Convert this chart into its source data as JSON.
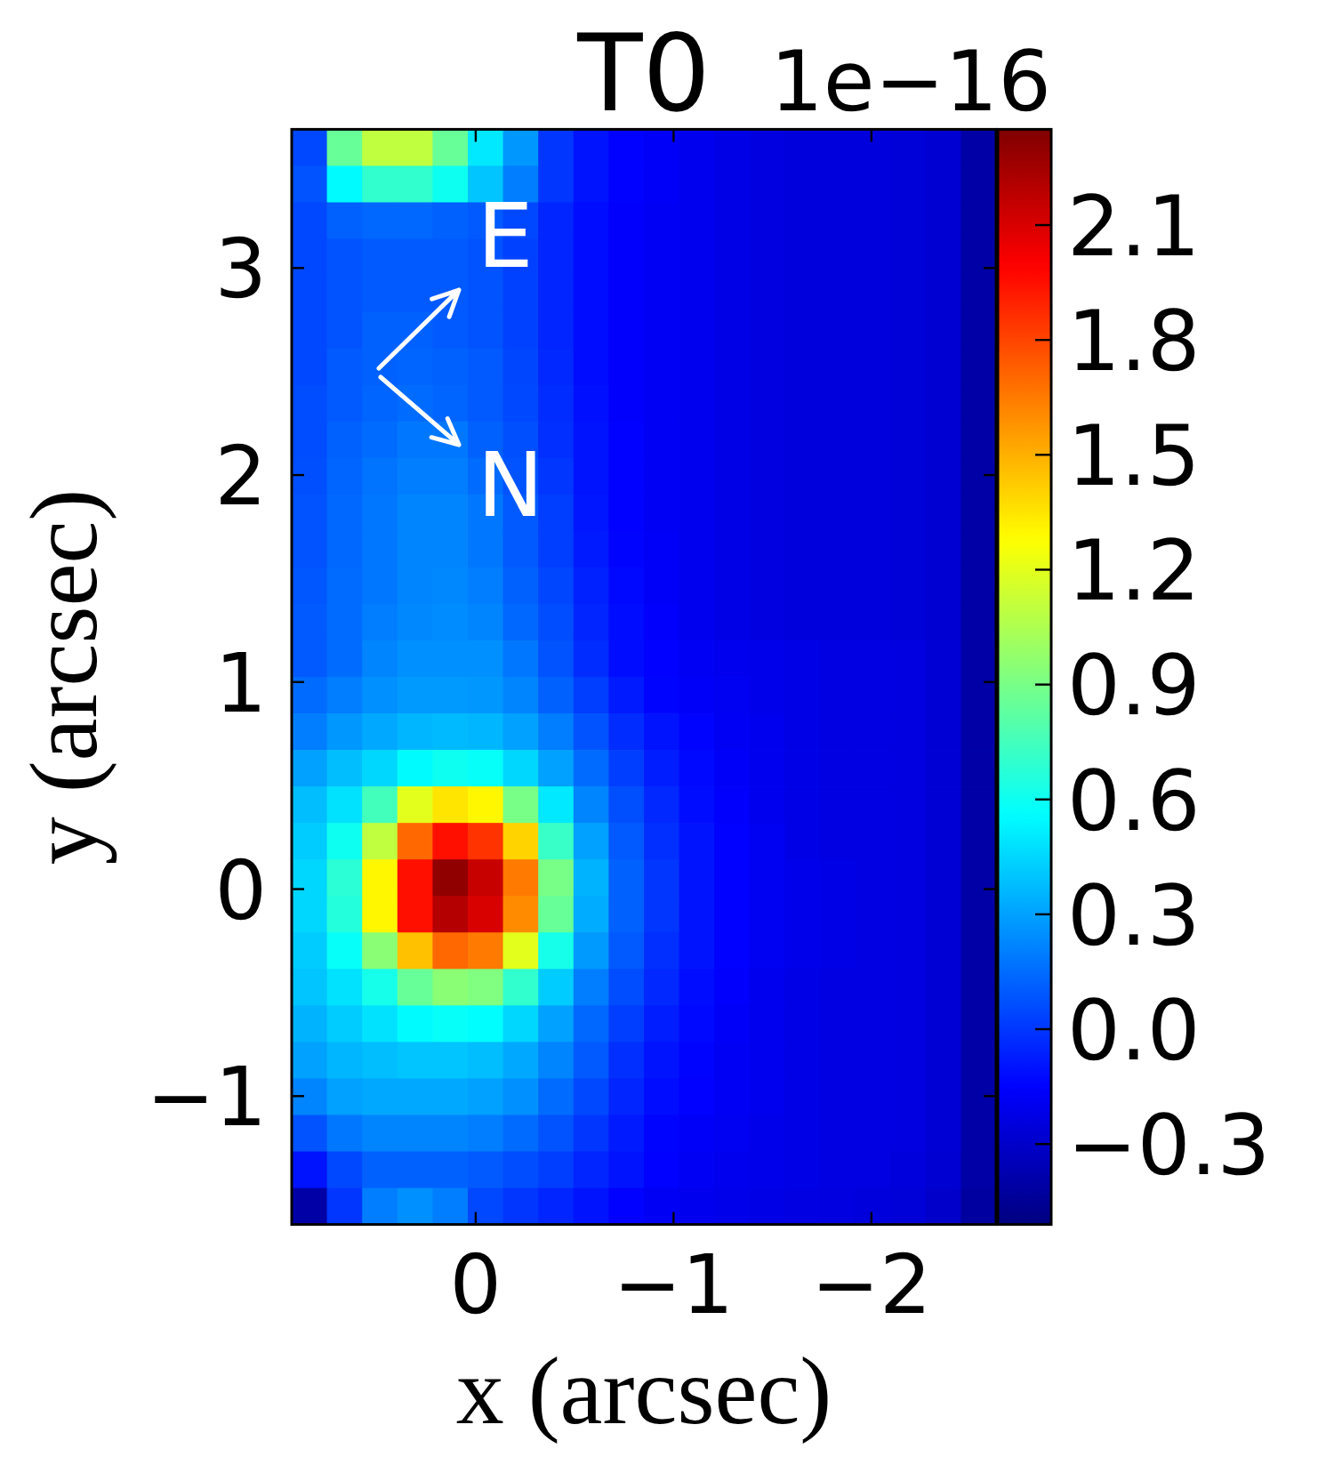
{
  "chart_data": {
    "type": "heatmap",
    "title": "T0",
    "xlabel": "x (arcsec)",
    "ylabel": "y (arcsec)",
    "clabel": "1e−16",
    "annotations": [
      "E",
      "N"
    ],
    "xlim": [
      0.93,
      -2.63
    ],
    "ylim": [
      -1.62,
      3.67
    ],
    "xticks": [
      0,
      {
        "value": -1,
        "label": "−1"
      },
      {
        "value": -2,
        "label": "−2"
      }
    ],
    "yticks": [
      {
        "value": -1,
        "label": "−1"
      },
      0,
      1,
      2,
      3
    ],
    "clim": [
      -0.51,
      2.35
    ],
    "cticks": [
      {
        "value": -0.3,
        "label": "−0.3"
      },
      {
        "value": 0,
        "label": "0.0"
      },
      0.3,
      0.6,
      0.9,
      1.2,
      1.5,
      1.8,
      2.1
    ],
    "cells": [
      [
        0.05,
        0.85,
        1.1,
        1.1,
        0.85,
        0.5,
        0.27,
        0.0,
        -0.1,
        -0.15,
        -0.17,
        -0.2,
        -0.22,
        -0.24,
        -0.25,
        -0.25,
        -0.25,
        -0.26,
        -0.28,
        -0.4
      ],
      [
        0.08,
        0.55,
        0.7,
        0.7,
        0.6,
        0.4,
        0.2,
        0.0,
        -0.1,
        -0.15,
        -0.17,
        -0.2,
        -0.22,
        -0.24,
        -0.25,
        -0.25,
        -0.25,
        -0.26,
        -0.28,
        -0.4
      ],
      [
        0.05,
        0.12,
        0.14,
        0.14,
        0.12,
        0.1,
        0.05,
        -0.05,
        -0.12,
        -0.16,
        -0.18,
        -0.2,
        -0.22,
        -0.24,
        -0.25,
        -0.25,
        -0.25,
        -0.26,
        -0.28,
        -0.4
      ],
      [
        0.05,
        0.08,
        0.1,
        0.1,
        0.1,
        0.08,
        0.03,
        -0.05,
        -0.12,
        -0.16,
        -0.18,
        -0.2,
        -0.22,
        -0.24,
        -0.25,
        -0.25,
        -0.25,
        -0.26,
        -0.28,
        -0.4
      ],
      [
        0.05,
        0.08,
        0.1,
        0.1,
        0.1,
        0.08,
        0.03,
        -0.05,
        -0.12,
        -0.16,
        -0.18,
        -0.2,
        -0.22,
        -0.24,
        -0.25,
        -0.25,
        -0.25,
        -0.26,
        -0.28,
        -0.4
      ],
      [
        0.05,
        0.08,
        0.12,
        0.12,
        0.1,
        0.08,
        0.03,
        -0.05,
        -0.12,
        -0.16,
        -0.18,
        -0.2,
        -0.22,
        -0.24,
        -0.25,
        -0.25,
        -0.25,
        -0.26,
        -0.28,
        -0.4
      ],
      [
        0.05,
        0.1,
        0.12,
        0.13,
        0.12,
        0.1,
        0.04,
        -0.04,
        -0.12,
        -0.16,
        -0.18,
        -0.2,
        -0.22,
        -0.24,
        -0.25,
        -0.25,
        -0.25,
        -0.26,
        -0.28,
        -0.4
      ],
      [
        0.06,
        0.1,
        0.13,
        0.15,
        0.13,
        0.1,
        0.05,
        -0.03,
        -0.11,
        -0.16,
        -0.18,
        -0.2,
        -0.22,
        -0.24,
        -0.25,
        -0.25,
        -0.25,
        -0.26,
        -0.28,
        -0.4
      ],
      [
        0.06,
        0.12,
        0.15,
        0.18,
        0.18,
        0.12,
        0.07,
        -0.02,
        -0.1,
        -0.15,
        -0.18,
        -0.2,
        -0.22,
        -0.24,
        -0.25,
        -0.25,
        -0.25,
        -0.26,
        -0.28,
        -0.4
      ],
      [
        0.07,
        0.13,
        0.17,
        0.2,
        0.2,
        0.15,
        0.08,
        0.0,
        -0.1,
        -0.15,
        -0.18,
        -0.2,
        -0.22,
        -0.24,
        -0.25,
        -0.25,
        -0.25,
        -0.26,
        -0.28,
        -0.4
      ],
      [
        0.08,
        0.14,
        0.18,
        0.22,
        0.22,
        0.18,
        0.1,
        0.02,
        -0.09,
        -0.15,
        -0.18,
        -0.2,
        -0.22,
        -0.24,
        -0.25,
        -0.25,
        -0.25,
        -0.26,
        -0.28,
        -0.4
      ],
      [
        0.08,
        0.14,
        0.18,
        0.22,
        0.22,
        0.18,
        0.1,
        0.02,
        -0.08,
        -0.14,
        -0.17,
        -0.2,
        -0.22,
        -0.24,
        -0.25,
        -0.25,
        -0.25,
        -0.26,
        -0.28,
        -0.4
      ],
      [
        0.09,
        0.15,
        0.18,
        0.22,
        0.23,
        0.2,
        0.12,
        0.04,
        -0.06,
        -0.13,
        -0.17,
        -0.2,
        -0.22,
        -0.24,
        -0.25,
        -0.25,
        -0.25,
        -0.26,
        -0.28,
        -0.4
      ],
      [
        0.1,
        0.15,
        0.2,
        0.23,
        0.24,
        0.22,
        0.14,
        0.06,
        -0.05,
        -0.12,
        -0.16,
        -0.2,
        -0.22,
        -0.24,
        -0.25,
        -0.25,
        -0.25,
        -0.26,
        -0.28,
        -0.4
      ],
      [
        0.1,
        0.15,
        0.22,
        0.25,
        0.25,
        0.25,
        0.18,
        0.08,
        -0.03,
        -0.12,
        -0.15,
        -0.18,
        -0.2,
        -0.21,
        -0.22,
        -0.23,
        -0.23,
        -0.24,
        -0.27,
        -0.4
      ],
      [
        0.15,
        0.2,
        0.25,
        0.28,
        0.28,
        0.27,
        0.22,
        0.12,
        0.02,
        -0.08,
        -0.14,
        -0.17,
        -0.19,
        -0.21,
        -0.22,
        -0.23,
        -0.23,
        -0.24,
        -0.27,
        -0.4
      ],
      [
        0.2,
        0.27,
        0.32,
        0.36,
        0.37,
        0.36,
        0.3,
        0.2,
        0.08,
        -0.03,
        -0.1,
        -0.14,
        -0.18,
        -0.2,
        -0.22,
        -0.23,
        -0.23,
        -0.24,
        -0.27,
        -0.4
      ],
      [
        0.3,
        0.38,
        0.45,
        0.55,
        0.6,
        0.58,
        0.45,
        0.3,
        0.15,
        0.02,
        -0.07,
        -0.13,
        -0.17,
        -0.2,
        -0.22,
        -0.23,
        -0.23,
        -0.24,
        -0.27,
        -0.4
      ],
      [
        0.38,
        0.48,
        0.75,
        1.2,
        1.35,
        1.3,
        0.9,
        0.5,
        0.22,
        0.07,
        -0.04,
        -0.12,
        -0.16,
        -0.2,
        -0.22,
        -0.23,
        -0.23,
        -0.24,
        -0.27,
        -0.4
      ],
      [
        0.42,
        0.6,
        1.1,
        1.7,
        1.95,
        1.85,
        1.4,
        0.72,
        0.3,
        0.1,
        -0.02,
        -0.1,
        -0.15,
        -0.19,
        -0.22,
        -0.23,
        -0.23,
        -0.24,
        -0.27,
        -0.4
      ],
      [
        0.45,
        0.68,
        1.3,
        1.95,
        2.3,
        2.15,
        1.65,
        0.9,
        0.35,
        0.12,
        0.0,
        -0.1,
        -0.15,
        -0.19,
        -0.21,
        -0.22,
        -0.23,
        -0.24,
        -0.27,
        -0.4
      ],
      [
        0.45,
        0.66,
        1.3,
        1.95,
        2.2,
        2.1,
        1.6,
        0.85,
        0.33,
        0.12,
        0.0,
        -0.1,
        -0.15,
        -0.19,
        -0.21,
        -0.22,
        -0.23,
        -0.24,
        -0.27,
        -0.4
      ],
      [
        0.42,
        0.58,
        0.95,
        1.45,
        1.7,
        1.65,
        1.2,
        0.62,
        0.28,
        0.1,
        -0.02,
        -0.1,
        -0.15,
        -0.19,
        -0.21,
        -0.22,
        -0.23,
        -0.24,
        -0.27,
        -0.4
      ],
      [
        0.4,
        0.48,
        0.62,
        0.85,
        0.95,
        0.92,
        0.7,
        0.42,
        0.2,
        0.06,
        -0.04,
        -0.12,
        -0.16,
        -0.2,
        -0.22,
        -0.23,
        -0.23,
        -0.24,
        -0.27,
        -0.4
      ],
      [
        0.35,
        0.42,
        0.48,
        0.55,
        0.58,
        0.56,
        0.45,
        0.3,
        0.14,
        0.02,
        -0.07,
        -0.13,
        -0.17,
        -0.2,
        -0.22,
        -0.23,
        -0.23,
        -0.24,
        -0.27,
        -0.4
      ],
      [
        0.3,
        0.36,
        0.38,
        0.4,
        0.4,
        0.38,
        0.32,
        0.22,
        0.1,
        -0.02,
        -0.1,
        -0.14,
        -0.18,
        -0.2,
        -0.22,
        -0.23,
        -0.23,
        -0.24,
        -0.27,
        -0.4
      ],
      [
        0.22,
        0.3,
        0.32,
        0.32,
        0.32,
        0.3,
        0.25,
        0.15,
        0.05,
        -0.05,
        -0.12,
        -0.15,
        -0.18,
        -0.2,
        -0.22,
        -0.23,
        -0.23,
        -0.24,
        -0.27,
        -0.4
      ],
      [
        0.08,
        0.18,
        0.22,
        0.22,
        0.22,
        0.2,
        0.15,
        0.08,
        0.0,
        -0.08,
        -0.14,
        -0.17,
        -0.19,
        -0.21,
        -0.22,
        -0.23,
        -0.23,
        -0.24,
        -0.27,
        -0.4
      ],
      [
        -0.1,
        0.05,
        0.12,
        0.12,
        0.12,
        0.1,
        0.06,
        0.02,
        -0.05,
        -0.1,
        -0.15,
        -0.18,
        -0.2,
        -0.21,
        -0.22,
        -0.23,
        -0.23,
        -0.25,
        -0.28,
        -0.4
      ],
      [
        -0.4,
        0.0,
        0.2,
        0.25,
        0.2,
        0.05,
        0.0,
        -0.05,
        -0.1,
        -0.15,
        -0.18,
        -0.2,
        -0.21,
        -0.22,
        -0.23,
        -0.24,
        -0.25,
        -0.26,
        -0.3,
        -0.42
      ]
    ]
  }
}
